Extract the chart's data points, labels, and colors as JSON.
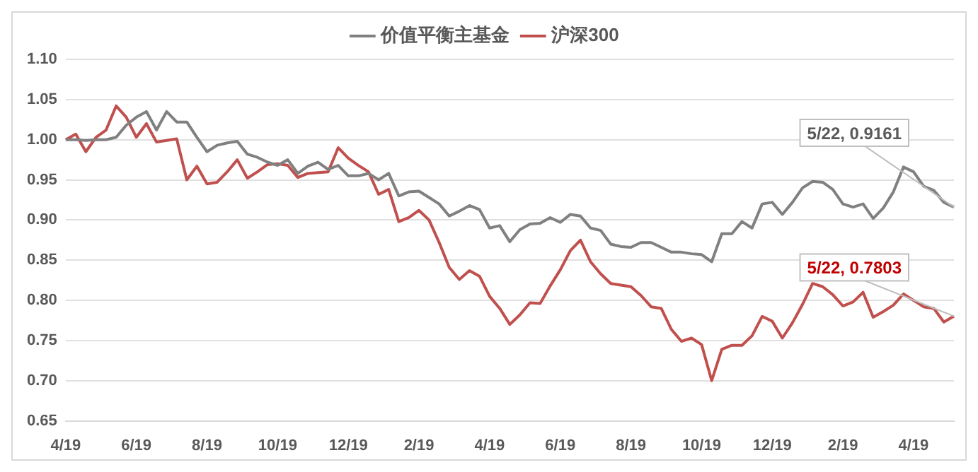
{
  "chart_data": {
    "type": "line",
    "categories": [
      "4/19",
      null,
      null,
      null,
      null,
      null,
      null,
      "6/19",
      null,
      null,
      null,
      null,
      null,
      null,
      "8/19",
      null,
      null,
      null,
      null,
      null,
      null,
      "10/19",
      null,
      null,
      null,
      null,
      null,
      null,
      "12/19",
      null,
      null,
      null,
      null,
      null,
      null,
      "2/19",
      null,
      null,
      null,
      null,
      null,
      null,
      "4/19",
      null,
      null,
      null,
      null,
      null,
      null,
      "6/19",
      null,
      null,
      null,
      null,
      null,
      null,
      "8/19",
      null,
      null,
      null,
      null,
      null,
      null,
      "10/19",
      null,
      null,
      null,
      null,
      null,
      null,
      "12/19",
      null,
      null,
      null,
      null,
      null,
      null,
      "2/19",
      null,
      null,
      null,
      null,
      null,
      null,
      "4/19",
      null,
      null,
      null,
      null
    ],
    "series": [
      {
        "name": "价值平衡主基金",
        "color": "#808080",
        "values": [
          1.0,
          1.0,
          0.999,
          1.0,
          1.0,
          1.003,
          1.018,
          1.028,
          1.035,
          1.012,
          1.035,
          1.022,
          1.022,
          1.003,
          0.985,
          0.993,
          0.996,
          0.998,
          0.982,
          0.978,
          0.972,
          0.968,
          0.975,
          0.958,
          0.967,
          0.972,
          0.963,
          0.968,
          0.955,
          0.955,
          0.958,
          0.95,
          0.958,
          0.93,
          0.935,
          0.936,
          0.928,
          0.92,
          0.905,
          0.911,
          0.918,
          0.913,
          0.89,
          0.893,
          0.873,
          0.888,
          0.895,
          0.896,
          0.903,
          0.897,
          0.907,
          0.905,
          0.89,
          0.887,
          0.87,
          0.867,
          0.866,
          0.872,
          0.872,
          0.866,
          0.86,
          0.86,
          0.858,
          0.857,
          0.848,
          0.883,
          0.883,
          0.898,
          0.89,
          0.92,
          0.922,
          0.907,
          0.922,
          0.94,
          0.948,
          0.947,
          0.938,
          0.92,
          0.916,
          0.92,
          0.902,
          0.915,
          0.935,
          0.966,
          0.96,
          0.942,
          0.937,
          0.922,
          0.9161
        ],
        "value_labels": [
          null,
          null,
          null,
          null,
          null,
          null,
          null,
          null,
          null,
          null,
          null,
          null,
          null,
          null,
          null,
          null,
          null,
          null,
          null,
          null,
          null,
          null,
          null,
          null,
          null,
          null,
          null,
          null,
          null,
          null,
          null,
          null,
          null,
          null,
          null,
          null,
          null,
          null,
          null,
          null,
          null,
          null,
          null,
          null,
          null,
          null,
          null,
          null,
          null,
          null,
          null,
          null,
          null,
          null,
          null,
          null,
          null,
          null,
          null,
          null,
          null,
          null,
          null,
          null,
          null,
          null,
          null,
          null,
          null,
          null,
          null,
          null,
          null,
          null,
          null,
          null,
          null,
          null,
          null,
          null,
          null,
          null,
          null,
          null,
          null,
          null,
          null,
          null,
          "5/22, 0.9161"
        ]
      },
      {
        "name": "沪深300",
        "color": "#c0504d",
        "values": [
          1.0,
          1.007,
          0.985,
          1.003,
          1.012,
          1.042,
          1.028,
          1.003,
          1.02,
          0.997,
          0.999,
          1.001,
          0.95,
          0.967,
          0.945,
          0.947,
          0.96,
          0.975,
          0.952,
          0.96,
          0.969,
          0.97,
          0.968,
          0.953,
          0.958,
          0.959,
          0.96,
          0.99,
          0.977,
          0.968,
          0.96,
          0.932,
          0.938,
          0.898,
          0.903,
          0.912,
          0.9,
          0.872,
          0.841,
          0.826,
          0.837,
          0.83,
          0.805,
          0.79,
          0.77,
          0.782,
          0.797,
          0.796,
          0.818,
          0.838,
          0.862,
          0.875,
          0.848,
          0.833,
          0.821,
          0.819,
          0.817,
          0.806,
          0.792,
          0.79,
          0.764,
          0.749,
          0.753,
          0.745,
          0.7,
          0.739,
          0.744,
          0.744,
          0.756,
          0.78,
          0.774,
          0.753,
          0.772,
          0.795,
          0.821,
          0.817,
          0.807,
          0.793,
          0.798,
          0.81,
          0.779,
          0.786,
          0.794,
          0.808,
          0.8,
          0.792,
          0.79,
          0.773,
          0.7803
        ],
        "value_labels": [
          null,
          null,
          null,
          null,
          null,
          null,
          null,
          null,
          null,
          null,
          null,
          null,
          null,
          null,
          null,
          null,
          null,
          null,
          null,
          null,
          null,
          null,
          null,
          null,
          null,
          null,
          null,
          null,
          null,
          null,
          null,
          null,
          null,
          null,
          null,
          null,
          null,
          null,
          null,
          null,
          null,
          null,
          null,
          null,
          null,
          null,
          null,
          null,
          null,
          null,
          null,
          null,
          null,
          null,
          null,
          null,
          null,
          null,
          null,
          null,
          null,
          null,
          null,
          null,
          null,
          null,
          null,
          null,
          null,
          null,
          null,
          null,
          null,
          null,
          null,
          null,
          null,
          null,
          null,
          null,
          null,
          null,
          null,
          null,
          null,
          null,
          null,
          null,
          "5/22, 0.7803"
        ]
      }
    ],
    "ylim": [
      0.65,
      1.1
    ],
    "yticks": [
      0.65,
      {
        "value": 0.7,
        "label": "0.70"
      },
      0.75,
      {
        "value": 0.8,
        "label": "0.80"
      },
      0.85,
      {
        "value": 0.9,
        "label": "0.90"
      },
      0.95,
      {
        "value": 1,
        "label": "1.00"
      },
      1.05,
      {
        "value": 1.1,
        "label": "1.10"
      }
    ],
    "grid": "y",
    "legend": "top",
    "marker": "none",
    "line_style": "solid"
  }
}
